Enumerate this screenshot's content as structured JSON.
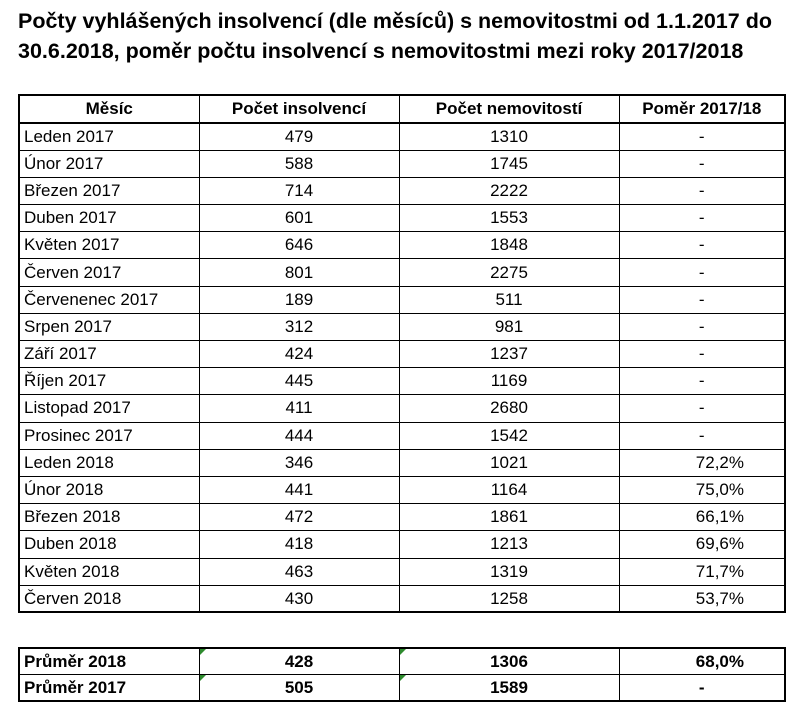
{
  "title": {
    "line1": "Počty vyhlášených insolvencí (dle měsíců) s nemovitostmi od 1.1.2017 do",
    "line2": "30.6.2018, poměr počtu insolvencí s nemovitostmi mezi roky 2017/2018"
  },
  "table": {
    "headers": [
      "Měsíc",
      "Počet insolvencí",
      "Počet nemovitostí",
      "Poměr 2017/18"
    ],
    "rows": [
      {
        "month": "Leden 2017",
        "insolvencies": "479",
        "properties": "1310",
        "ratio": "-"
      },
      {
        "month": "Únor 2017",
        "insolvencies": "588",
        "properties": "1745",
        "ratio": "-"
      },
      {
        "month": "Březen 2017",
        "insolvencies": "714",
        "properties": "2222",
        "ratio": "-"
      },
      {
        "month": "Duben 2017",
        "insolvencies": "601",
        "properties": "1553",
        "ratio": "-"
      },
      {
        "month": "Květen 2017",
        "insolvencies": "646",
        "properties": "1848",
        "ratio": "-"
      },
      {
        "month": "Červen 2017",
        "insolvencies": "801",
        "properties": "2275",
        "ratio": "-"
      },
      {
        "month": "Červenenec 2017",
        "insolvencies": "189",
        "properties": "511",
        "ratio": "-"
      },
      {
        "month": "Srpen 2017",
        "insolvencies": "312",
        "properties": "981",
        "ratio": "-"
      },
      {
        "month": "Září 2017",
        "insolvencies": "424",
        "properties": "1237",
        "ratio": "-"
      },
      {
        "month": "Říjen 2017",
        "insolvencies": "445",
        "properties": "1169",
        "ratio": "-"
      },
      {
        "month": "Listopad 2017",
        "insolvencies": "411",
        "properties": "2680",
        "ratio": "-"
      },
      {
        "month": "Prosinec 2017",
        "insolvencies": "444",
        "properties": "1542",
        "ratio": "-"
      },
      {
        "month": "Leden 2018",
        "insolvencies": "346",
        "properties": "1021",
        "ratio": "72,2%"
      },
      {
        "month": "Únor 2018",
        "insolvencies": "441",
        "properties": "1164",
        "ratio": "75,0%"
      },
      {
        "month": "Březen 2018",
        "insolvencies": "472",
        "properties": "1861",
        "ratio": "66,1%"
      },
      {
        "month": "Duben 2018",
        "insolvencies": "418",
        "properties": "1213",
        "ratio": "69,6%"
      },
      {
        "month": "Květen 2018",
        "insolvencies": "463",
        "properties": "1319",
        "ratio": "71,7%"
      },
      {
        "month": "Červen 2018",
        "insolvencies": "430",
        "properties": "1258",
        "ratio": "53,7%"
      }
    ]
  },
  "summary": [
    {
      "label": "Průměr 2018",
      "insolvencies": "428",
      "properties": "1306",
      "ratio": "68,0%"
    },
    {
      "label": "Průměr 2017",
      "insolvencies": "505",
      "properties": "1589",
      "ratio": "-"
    }
  ],
  "colors": {
    "cell_flag": "#2e8b2e"
  }
}
